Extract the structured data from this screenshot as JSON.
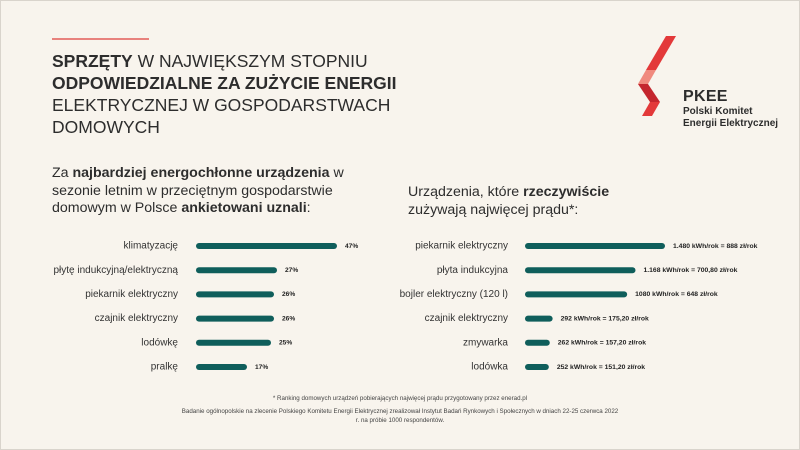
{
  "headline": {
    "part1_bold": "SPRZĘTY",
    "part2": " W NAJWIĘKSZYM STOPNIU ",
    "part3_bold": "ODPOWIEDZIALNE ZA ZUŻYCIE ENERGII",
    "part4": " ELEKTRYCZNEJ W GOSPODARSTWACH DOMOWYCH"
  },
  "logo": {
    "title": "PKEE",
    "line1": "Polski Komitet",
    "line2": "Energii Elektrycznej",
    "brand_color": "#e3393a"
  },
  "left_subtitle": {
    "p1": "Za ",
    "p2_bold": "najbardziej energochłonne urządzenia",
    "p3": " w sezonie letnim w przeciętnym gospodarstwie domowym w Polsce ",
    "p4_bold": "ankietowani uznali",
    "p5": ":"
  },
  "right_subtitle": {
    "p1": "Urządzenia, które ",
    "p2_bold": "rzeczywiście",
    "p3": " zużywają najwięcej prądu*:"
  },
  "footnote": {
    "line1": "* Ranking domowych urządzeń pobierających najwięcej prądu przygotowany przez enerad.pl",
    "line2": "Badanie ogólnopolskie na zlecenie Polskiego Komitetu Energii Elektrycznej zrealizował Instytut Badań Rynkowych i Społecznych w dniach 22-25 czerwca 2022 r. na próbie 1000 respondentów."
  },
  "bar_color": "#0f5e5b",
  "chart_data": [
    {
      "type": "bar",
      "orientation": "horizontal",
      "categories": [
        "klimatyzację",
        "płytę indukcyjną/elektryczną",
        "piekarnik elektryczny",
        "czajnik elektryczny",
        "lodówkę",
        "pralkę"
      ],
      "values": [
        47,
        27,
        26,
        26,
        25,
        17
      ],
      "value_labels": [
        "47%",
        "27%",
        "26%",
        "26%",
        "25%",
        "17%"
      ],
      "unit": "%"
    },
    {
      "type": "bar",
      "orientation": "horizontal",
      "categories": [
        "piekarnik elektryczny",
        "płyta indukcyjna",
        "bojler elektryczny (120 l)",
        "czajnik elektryczny",
        "zmywarka",
        "lodówka"
      ],
      "values": [
        1480,
        1168,
        1080,
        292,
        262,
        252
      ],
      "value_labels": [
        "1.480 kWh/rok = 888 zł/rok",
        "1.168 kWh/rok = 700,80 zł/rok",
        "1080 kWh/rok = 648 zł/rok",
        "292 kWh/rok = 175,20 zł/rok",
        "262 kWh/rok = 157,20 zł/rok",
        "252 kWh/rok = 151,20 zł/rok"
      ],
      "unit": "kWh/rok"
    }
  ]
}
